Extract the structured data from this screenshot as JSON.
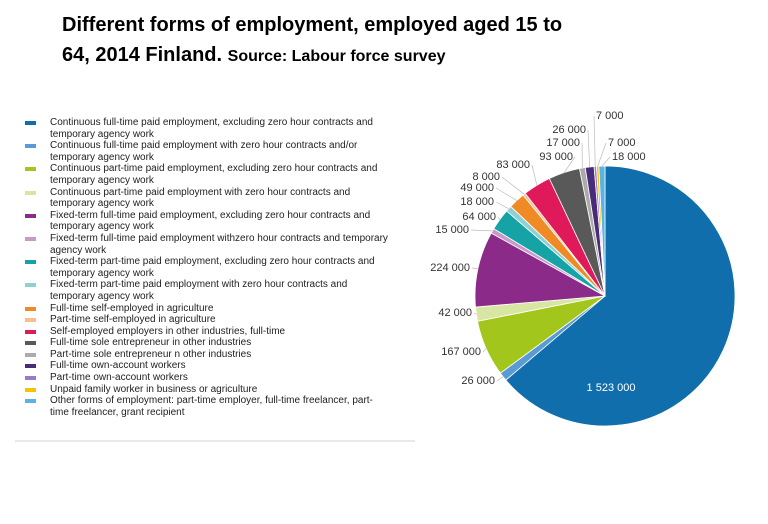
{
  "chart_data": {
    "type": "pie",
    "title": "Different forms of employment, employed aged 15 to 64, 2014 Finland.",
    "subtitle": "Source: Labour force survey",
    "categories": [
      "Continuous full-time paid employment, excluding zero hour contracts and temporary agency work",
      "Continuous full-time paid employment with zero hour contracts and/or temporary agency work",
      "Continuous part-time paid employment, excluding zero hour contracts and temporary agency work",
      "Continuous part-time paid employment with zero hour contracts and temporary agency work",
      "Fixed-term full-time paid employment, excluding zero hour contracts and temporary agency work",
      "Fixed-term full-time paid employment withzero hour contracts and temporary agency work",
      "Fixed-term part-time paid employment, excluding zero hour contracts and temporary agency work",
      "Fixed-term part-time paid employment with zero hour contracts and temporary agency work",
      "Full-time self-employed in agriculture",
      "Part-time self-employed in agriculture",
      "Self-employed employers in other industries, full-time",
      "Full-time sole entrepreneur in other industries",
      "Part-time sole entrepreneur n other industries",
      "Full-time own-account workers",
      "Part-time own-account workers",
      "Unpaid family worker in business or agriculture",
      "Other forms of employment: part-time employer, full-time freelancer, part-time freelancer, grant recipient"
    ],
    "values": [
      1523000,
      26000,
      167000,
      42000,
      224000,
      15000,
      64000,
      18000,
      49000,
      8000,
      83000,
      93000,
      17000,
      26000,
      7000,
      7000,
      18000
    ],
    "value_labels": [
      "1 523 000",
      "26 000",
      "167 000",
      "42 000",
      "224 000",
      "15 000",
      "64 000",
      "18 000",
      "49 000",
      "8 000",
      "83 000",
      "93 000",
      "17 000",
      "26 000",
      "7 000",
      "7 000",
      "18 000"
    ],
    "colors": [
      "#0f6eab",
      "#5b9bd5",
      "#a3c61d",
      "#d8e6a3",
      "#8c2a8a",
      "#c99ac7",
      "#16a3a6",
      "#8fd0d2",
      "#f08a24",
      "#f5c08e",
      "#e0195a",
      "#595959",
      "#ababab",
      "#4a2b7a",
      "#9b7bc9",
      "#f2c500",
      "#5bb3e3"
    ]
  }
}
